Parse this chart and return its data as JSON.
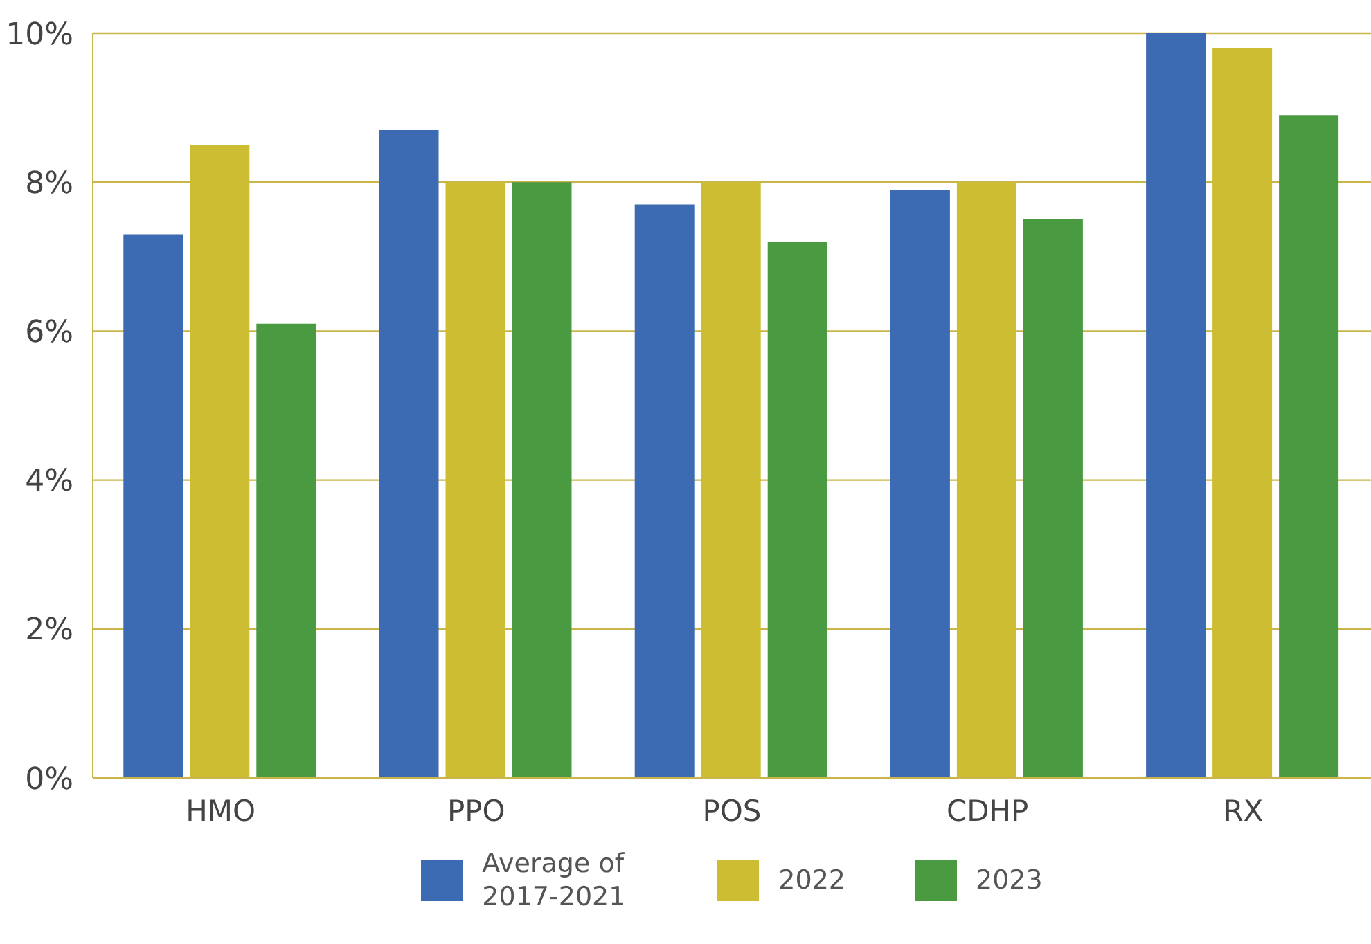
{
  "chart_data": {
    "type": "bar",
    "categories": [
      "HMO",
      "PPO",
      "POS",
      "CDHP",
      "RX"
    ],
    "series": [
      {
        "name": "Average of 2017-2021",
        "color": "#3d6bb3",
        "values": [
          7.3,
          8.7,
          7.7,
          7.9,
          10.0
        ]
      },
      {
        "name": "2022",
        "color": "#cdbd33",
        "values": [
          8.5,
          8.0,
          8.0,
          8.0,
          9.8
        ]
      },
      {
        "name": "2023",
        "color": "#4a9a42",
        "values": [
          6.1,
          8.0,
          7.2,
          7.5,
          8.9
        ]
      }
    ],
    "ylim": [
      0,
      10
    ],
    "yticks": [
      {
        "value": 0,
        "label": "0%"
      },
      {
        "value": 2,
        "label": "2%"
      },
      {
        "value": 4,
        "label": "4%"
      },
      {
        "value": 6,
        "label": "6%"
      },
      {
        "value": 8,
        "label": "8%"
      },
      {
        "value": 10,
        "label": "10%"
      }
    ],
    "grid": "y",
    "legend": "bottom"
  }
}
